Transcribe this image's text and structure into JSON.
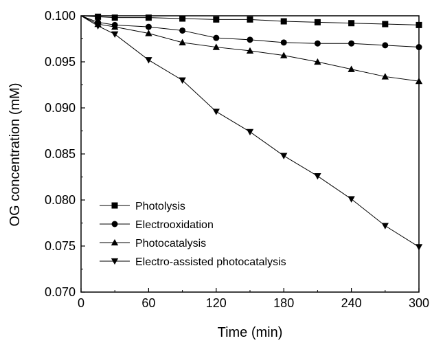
{
  "chart_data": {
    "type": "line",
    "xlabel": "Time (min)",
    "ylabel": "OG concentration (mM)",
    "xlim": [
      0,
      300
    ],
    "ylim": [
      0.07,
      0.1
    ],
    "xticks": [
      "0",
      "60",
      "120",
      "180",
      "240",
      "300"
    ],
    "yticks": [
      "0.070",
      "0.075",
      "0.080",
      "0.085",
      "0.090",
      "0.095",
      "0.100"
    ],
    "grid": false,
    "legend_position": "bottom-left",
    "x": [
      0,
      15,
      30,
      60,
      90,
      120,
      150,
      180,
      210,
      240,
      270,
      300
    ],
    "series": [
      {
        "name": "Photolysis",
        "marker": "square",
        "values": [
          0.1,
          0.0999,
          0.0998,
          0.0998,
          0.0997,
          0.0996,
          0.0996,
          0.0994,
          0.0993,
          0.0992,
          0.0991,
          0.099
        ]
      },
      {
        "name": "Electrooxidation",
        "marker": "circle",
        "values": [
          0.1,
          0.0993,
          0.099,
          0.0988,
          0.0984,
          0.0976,
          0.0974,
          0.0971,
          0.097,
          0.097,
          0.0968,
          0.0966
        ]
      },
      {
        "name": "Photocatalysis",
        "marker": "triangle-up",
        "values": [
          0.1,
          0.0991,
          0.0988,
          0.0981,
          0.0971,
          0.0966,
          0.0962,
          0.0957,
          0.095,
          0.0942,
          0.0934,
          0.0929
        ]
      },
      {
        "name": "Electro-assisted photocatalysis",
        "marker": "triangle-down",
        "values": [
          0.1,
          0.0989,
          0.098,
          0.0952,
          0.093,
          0.0896,
          0.0874,
          0.0848,
          0.0826,
          0.0801,
          0.0772,
          0.0749
        ]
      }
    ]
  }
}
